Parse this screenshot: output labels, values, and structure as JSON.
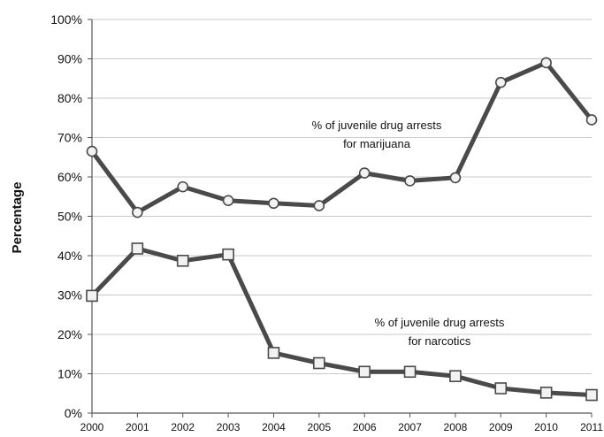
{
  "chart_data": {
    "type": "line",
    "title": "",
    "xlabel": "",
    "ylabel": "Percentage",
    "ylim": [
      0,
      100
    ],
    "y_tick_labels": [
      "0%",
      "10%",
      "20%",
      "30%",
      "40%",
      "50%",
      "60%",
      "70%",
      "80%",
      "90%",
      "100%"
    ],
    "x": [
      "2000",
      "2001",
      "2002",
      "2003",
      "2004",
      "2005",
      "2006",
      "2007",
      "2008",
      "2009",
      "2010",
      "2011"
    ],
    "grid": true,
    "legend": "none",
    "series": [
      {
        "marker": "circle",
        "color": "#4a4a4a",
        "values": [
          66.5,
          51,
          57.5,
          54,
          53.3,
          52.7,
          61,
          59,
          59.8,
          84,
          89,
          74.5
        ],
        "annotation": [
          "% of juvenile drug arrests",
          "for marijuana"
        ]
      },
      {
        "marker": "square",
        "color": "#4a4a4a",
        "values": [
          29.8,
          41.8,
          38.7,
          40.3,
          15.3,
          12.7,
          10.5,
          10.5,
          9.4,
          6.3,
          5.2,
          4.6
        ],
        "annotation": [
          "% of juvenile drug arrests",
          "for narcotics"
        ]
      }
    ]
  }
}
